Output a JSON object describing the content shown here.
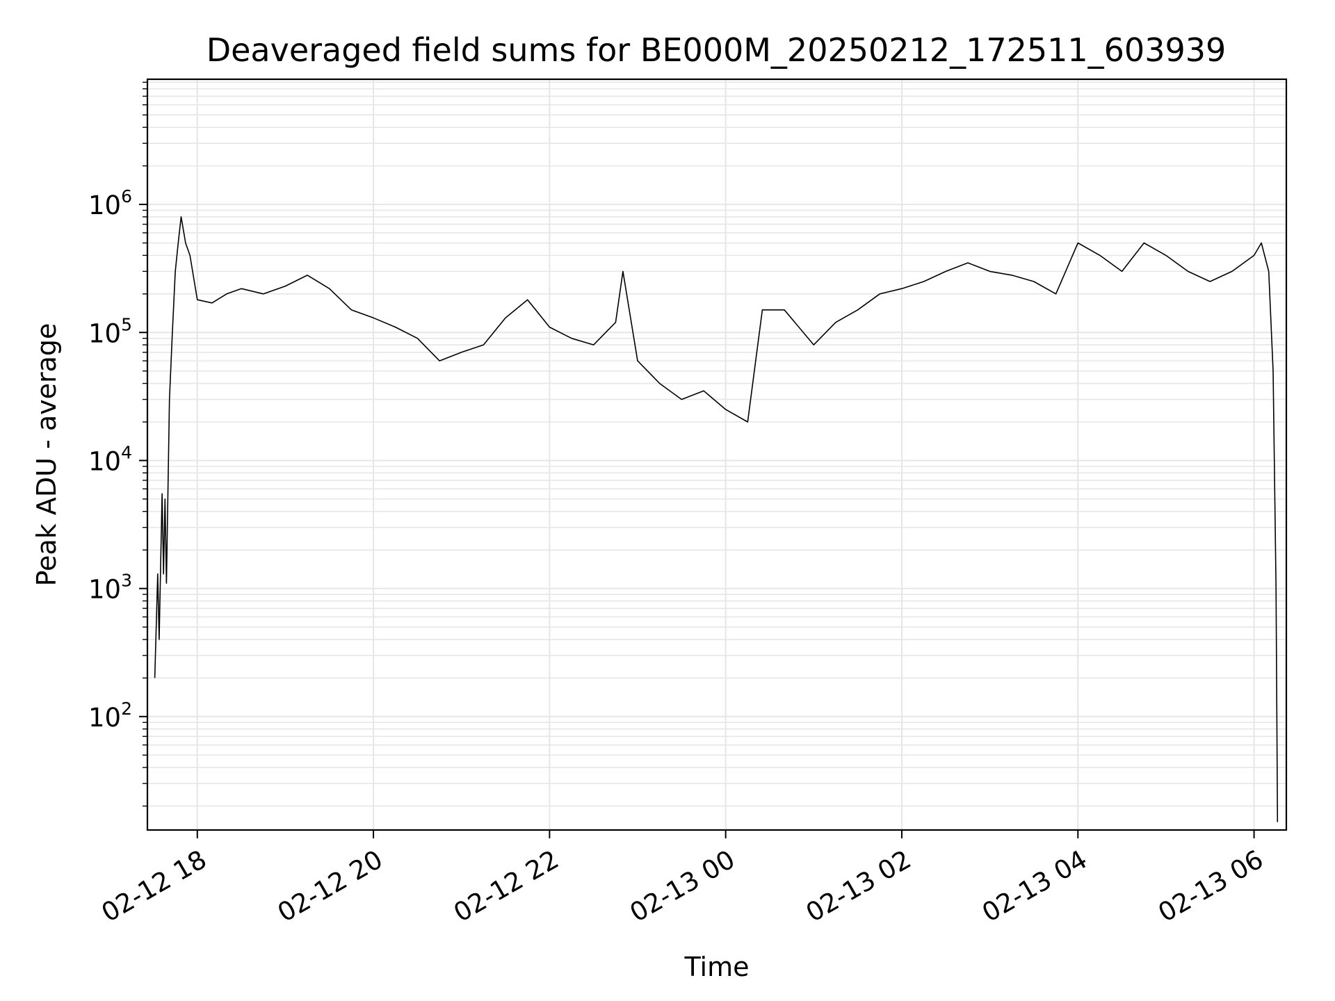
{
  "chart_data": {
    "type": "line",
    "title": "Deaveraged field sums for BE000M_20250212_172511_603939",
    "xlabel": "Time",
    "ylabel": "Peak ADU - average",
    "yscale": "log",
    "xlim": [
      "2025-02-12 17:26",
      "2025-02-13 06:22"
    ],
    "ylim": [
      13,
      9500000
    ],
    "grid": true,
    "x_ticks": [
      {
        "value": "2025-02-12 18:00",
        "label": "02-12 18"
      },
      {
        "value": "2025-02-12 20:00",
        "label": "02-12 20"
      },
      {
        "value": "2025-02-12 22:00",
        "label": "02-12 22"
      },
      {
        "value": "2025-02-13 00:00",
        "label": "02-13 00"
      },
      {
        "value": "2025-02-13 02:00",
        "label": "02-13 02"
      },
      {
        "value": "2025-02-13 04:00",
        "label": "02-13 04"
      },
      {
        "value": "2025-02-13 06:00",
        "label": "02-13 06"
      }
    ],
    "y_ticks": [
      {
        "value": 100,
        "base": "10",
        "exp": "2"
      },
      {
        "value": 1000,
        "base": "10",
        "exp": "3"
      },
      {
        "value": 10000,
        "base": "10",
        "exp": "4"
      },
      {
        "value": 100000,
        "base": "10",
        "exp": "5"
      },
      {
        "value": 1000000,
        "base": "10",
        "exp": "6"
      }
    ],
    "line_color": "#000000",
    "grid_color": "#e6e6e6",
    "series": [
      {
        "x": [
          "2025-02-12 17:31",
          "2025-02-12 17:33",
          "2025-02-12 17:34",
          "2025-02-12 17:36",
          "2025-02-12 17:37",
          "2025-02-12 17:38",
          "2025-02-12 17:39",
          "2025-02-12 17:41",
          "2025-02-12 17:43",
          "2025-02-12 17:45",
          "2025-02-12 17:47",
          "2025-02-12 17:49",
          "2025-02-12 17:52",
          "2025-02-12 17:55",
          "2025-02-12 18:00",
          "2025-02-12 18:10",
          "2025-02-12 18:20",
          "2025-02-12 18:30",
          "2025-02-12 18:45",
          "2025-02-12 19:00",
          "2025-02-12 19:15",
          "2025-02-12 19:30",
          "2025-02-12 19:45",
          "2025-02-12 20:00",
          "2025-02-12 20:15",
          "2025-02-12 20:30",
          "2025-02-12 20:45",
          "2025-02-12 21:00",
          "2025-02-12 21:15",
          "2025-02-12 21:30",
          "2025-02-12 21:45",
          "2025-02-12 22:00",
          "2025-02-12 22:15",
          "2025-02-12 22:30",
          "2025-02-12 22:45",
          "2025-02-12 22:50",
          "2025-02-12 23:00",
          "2025-02-12 23:15",
          "2025-02-12 23:30",
          "2025-02-12 23:45",
          "2025-02-13 00:00",
          "2025-02-13 00:15",
          "2025-02-13 00:25",
          "2025-02-13 00:40",
          "2025-02-13 01:00",
          "2025-02-13 01:15",
          "2025-02-13 01:30",
          "2025-02-13 01:45",
          "2025-02-13 02:00",
          "2025-02-13 02:15",
          "2025-02-13 02:30",
          "2025-02-13 02:45",
          "2025-02-13 03:00",
          "2025-02-13 03:15",
          "2025-02-13 03:30",
          "2025-02-13 03:45",
          "2025-02-13 04:00",
          "2025-02-13 04:15",
          "2025-02-13 04:30",
          "2025-02-13 04:45",
          "2025-02-13 05:00",
          "2025-02-13 05:15",
          "2025-02-13 05:30",
          "2025-02-13 05:45",
          "2025-02-13 06:00",
          "2025-02-13 06:05",
          "2025-02-13 06:10",
          "2025-02-13 06:13",
          "2025-02-13 06:15",
          "2025-02-13 06:16"
        ],
        "y": [
          200,
          1300,
          400,
          5500,
          1300,
          5000,
          1100,
          30000,
          100000,
          300000,
          500000,
          800000,
          500000,
          400000,
          180000,
          170000,
          200000,
          220000,
          200000,
          230000,
          280000,
          220000,
          150000,
          130000,
          110000,
          90000,
          60000,
          70000,
          80000,
          130000,
          180000,
          110000,
          90000,
          80000,
          120000,
          300000,
          60000,
          40000,
          30000,
          35000,
          25000,
          20000,
          150000,
          150000,
          80000,
          120000,
          150000,
          200000,
          220000,
          250000,
          300000,
          350000,
          300000,
          280000,
          250000,
          200000,
          500000,
          400000,
          300000,
          500000,
          400000,
          300000,
          250000,
          300000,
          400000,
          500000,
          300000,
          50000,
          1000,
          15
        ]
      }
    ]
  }
}
